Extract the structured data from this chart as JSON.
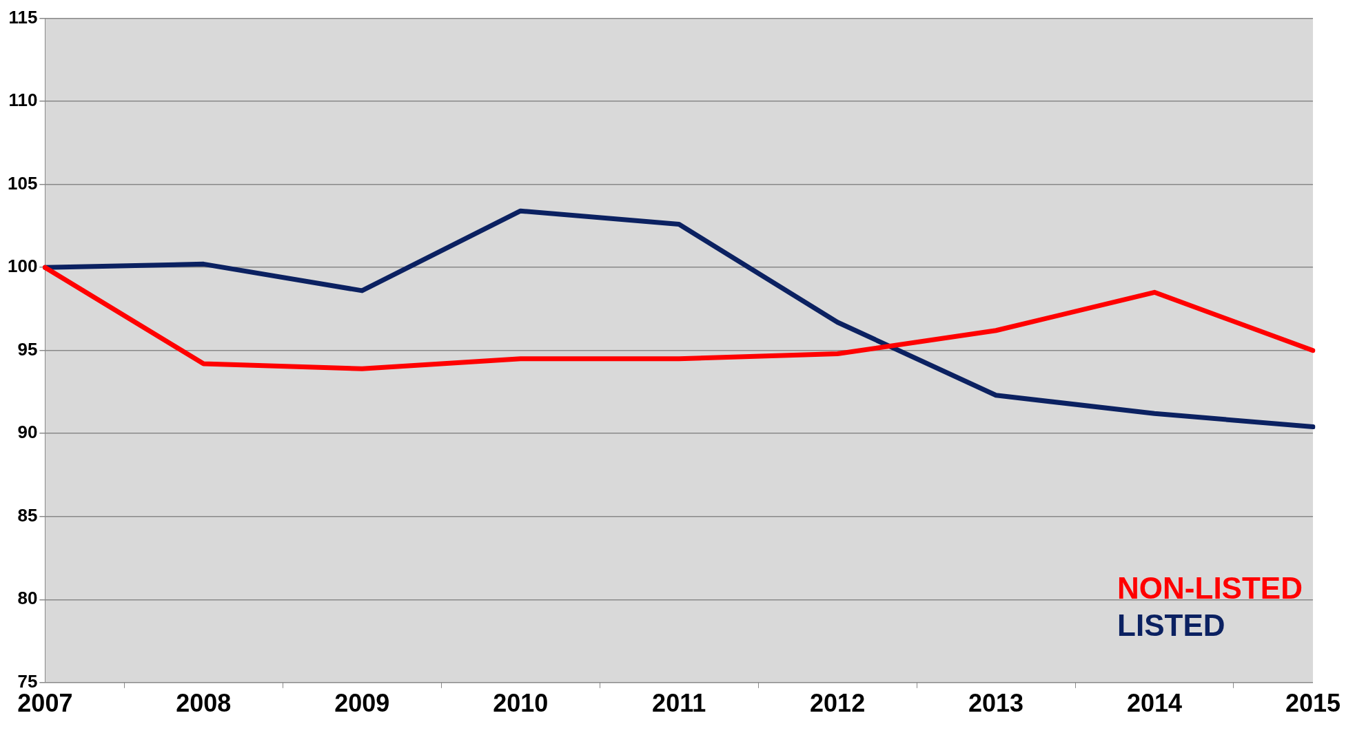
{
  "chart_data": {
    "type": "line",
    "categories": [
      "2007",
      "2008",
      "2009",
      "2010",
      "2011",
      "2012",
      "2013",
      "2014",
      "2015"
    ],
    "series": [
      {
        "name": "NON-LISTED",
        "color": "#ff0000",
        "values": [
          100,
          94.2,
          93.9,
          94.5,
          94.5,
          94.8,
          96.2,
          98.5,
          95.0
        ]
      },
      {
        "name": "LISTED",
        "color": "#0b2161",
        "values": [
          100,
          100.2,
          98.6,
          103.4,
          102.6,
          96.7,
          92.3,
          91.2,
          90.4
        ]
      }
    ],
    "ylim": [
      75,
      115
    ],
    "yticks": [
      75,
      80,
      85,
      90,
      95,
      100,
      105,
      110,
      115
    ],
    "grid": "y",
    "legend": "bottom right",
    "marker": "none",
    "line_style": "solid"
  }
}
